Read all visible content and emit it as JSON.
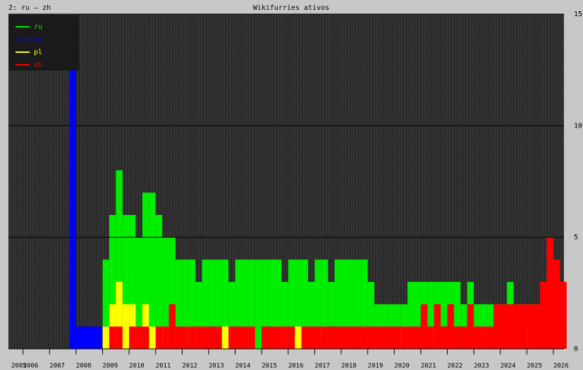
{
  "chart_data": {
    "type": "bar",
    "corner_label": "2: ru – zh",
    "title": "Wikifurries ativos",
    "x": [
      2007.75,
      2008,
      2008.25,
      2008.5,
      2008.75,
      2009,
      2009.25,
      2009.5,
      2009.75,
      2010,
      2010.25,
      2010.5,
      2010.75,
      2011,
      2011.25,
      2011.5,
      2011.75,
      2012,
      2012.25,
      2012.5,
      2012.75,
      2013,
      2013.25,
      2013.5,
      2013.75,
      2014,
      2014.25,
      2014.5,
      2014.75,
      2015,
      2015.25,
      2015.5,
      2015.75,
      2016,
      2016.25,
      2016.5,
      2016.75,
      2017,
      2017.25,
      2017.5,
      2017.75,
      2018,
      2018.25,
      2018.5,
      2018.75,
      2019,
      2019.25,
      2019.5,
      2019.75,
      2020,
      2020.25,
      2020.5,
      2020.75,
      2021,
      2021.25,
      2021.5,
      2021.75,
      2022,
      2022.25,
      2022.5,
      2022.75,
      2023,
      2023.25,
      2023.5,
      2023.75,
      2024,
      2024.25,
      2024.5,
      2024.75,
      2025,
      2025.25,
      2025.5,
      2025.75,
      2026,
      2026.25
    ],
    "series": [
      {
        "name": "ru",
        "color": "#00ee00",
        "values": [
          0,
          0,
          0,
          0,
          0,
          4,
          6,
          8,
          6,
          6,
          5,
          7,
          7,
          6,
          5,
          5,
          4,
          4,
          4,
          3,
          4,
          4,
          4,
          4,
          3,
          4,
          4,
          4,
          4,
          4,
          4,
          4,
          3,
          4,
          4,
          4,
          3,
          4,
          4,
          3,
          4,
          4,
          4,
          4,
          4,
          3,
          2,
          2,
          2,
          2,
          2,
          3,
          3,
          3,
          3,
          3,
          3,
          3,
          3,
          2,
          3,
          2,
          2,
          2,
          2,
          2,
          3,
          2,
          2,
          2,
          1,
          1,
          1,
          1,
          1
        ]
      },
      {
        "name": "de",
        "color": "#0000ff",
        "values": [
          13,
          1,
          1,
          1,
          1,
          1,
          0,
          1,
          0,
          0,
          0,
          1,
          0,
          0,
          0,
          0,
          0,
          0,
          0,
          0,
          0,
          0,
          0,
          0,
          0,
          0,
          0,
          0,
          0,
          0,
          0,
          0,
          0,
          0,
          0,
          0,
          0,
          0,
          0,
          1,
          0,
          0,
          0,
          0,
          0,
          0,
          0,
          0,
          0,
          0,
          0,
          0,
          0,
          0,
          0,
          0,
          1,
          0,
          0,
          0,
          0,
          0,
          0,
          0,
          0,
          0,
          0,
          0,
          0,
          0,
          0,
          0,
          0,
          0,
          0
        ]
      },
      {
        "name": "pl",
        "color": "#ffff00",
        "values": [
          0,
          0,
          0,
          0,
          0,
          1,
          2,
          3,
          2,
          2,
          1,
          2,
          1,
          1,
          1,
          1,
          0,
          1,
          1,
          0,
          1,
          0,
          0,
          1,
          0,
          0,
          0,
          1,
          0,
          0,
          0,
          1,
          0,
          0,
          1,
          0,
          0,
          0,
          1,
          0,
          0,
          0,
          0,
          0,
          0,
          0,
          1,
          0,
          0,
          0,
          1,
          0,
          0,
          0,
          0,
          1,
          0,
          0,
          0,
          0,
          0,
          0,
          1,
          0,
          0,
          0,
          0,
          0,
          1,
          0,
          0,
          0,
          0,
          1,
          0
        ]
      },
      {
        "name": "zh",
        "color": "#ff0000",
        "values": [
          0,
          0,
          0,
          0,
          0,
          0,
          1,
          1,
          0,
          1,
          1,
          1,
          0,
          1,
          1,
          2,
          1,
          1,
          1,
          1,
          1,
          1,
          1,
          0,
          1,
          1,
          1,
          1,
          0,
          1,
          1,
          1,
          1,
          1,
          0,
          1,
          1,
          1,
          1,
          1,
          1,
          1,
          1,
          1,
          1,
          1,
          1,
          1,
          1,
          1,
          1,
          1,
          1,
          2,
          1,
          2,
          1,
          2,
          1,
          1,
          2,
          1,
          1,
          1,
          2,
          2,
          2,
          2,
          2,
          2,
          2,
          3,
          5,
          4,
          3
        ]
      }
    ],
    "xlim": [
      2005.45,
      2026.4
    ],
    "xticks": [
      2005,
      2006,
      2007,
      2008,
      2009,
      2010,
      2011,
      2012,
      2013,
      2014,
      2015,
      2016,
      2017,
      2018,
      2019,
      2020,
      2021,
      2022,
      2023,
      2024,
      2025,
      2026
    ],
    "ylim": [
      0,
      15
    ],
    "yticks": [
      0,
      5,
      10,
      15
    ],
    "grid": true,
    "legend": "upper left"
  }
}
